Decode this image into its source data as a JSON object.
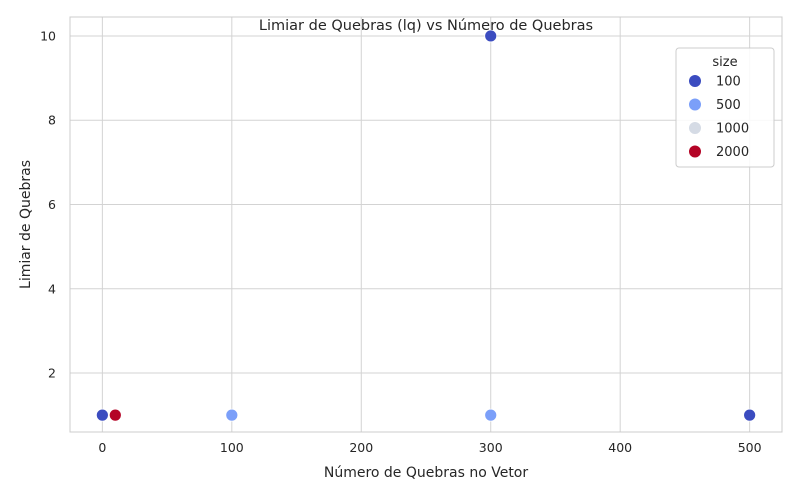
{
  "chart_data": {
    "type": "scatter",
    "title": "Limiar de Quebras (lq) vs Número de Quebras",
    "xlabel": "Número de Quebras no Vetor",
    "ylabel": "Limiar de Quebras",
    "xlim": [
      -25,
      525
    ],
    "ylim": [
      0.6,
      10.45
    ],
    "xticks": [
      0,
      100,
      200,
      300,
      400,
      500
    ],
    "yticks": [
      2,
      4,
      6,
      8,
      10
    ],
    "grid": true,
    "legend": {
      "title": "size",
      "placement": "top-right",
      "entries": [
        {
          "label": "100",
          "color": "#3b4cc0"
        },
        {
          "label": "500",
          "color": "#7b9ff9"
        },
        {
          "label": "1000",
          "color": "#d5dbe5"
        },
        {
          "label": "2000",
          "color": "#b40426"
        }
      ]
    },
    "series": [
      {
        "name": "100",
        "color": "#3b4cc0",
        "points": [
          {
            "x": 0,
            "y": 1
          },
          {
            "x": 300,
            "y": 10
          },
          {
            "x": 500,
            "y": 1
          }
        ]
      },
      {
        "name": "500",
        "color": "#7b9ff9",
        "points": [
          {
            "x": 100,
            "y": 1
          },
          {
            "x": 300,
            "y": 1
          }
        ]
      },
      {
        "name": "1000",
        "color": "#d5dbe5",
        "points": []
      },
      {
        "name": "2000",
        "color": "#b40426",
        "points": [
          {
            "x": 10,
            "y": 1
          }
        ]
      }
    ]
  }
}
